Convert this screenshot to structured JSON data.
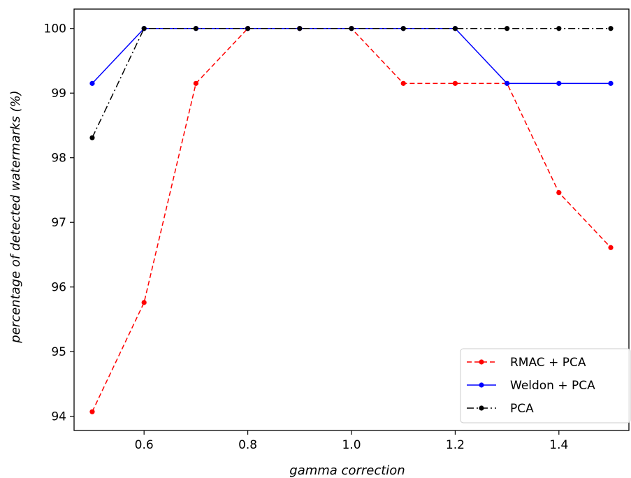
{
  "chart_data": {
    "type": "line",
    "xlabel": "gamma correction",
    "ylabel": "percentage of detected watermarks (%)",
    "xlim": [
      0.465,
      1.535
    ],
    "ylim": [
      93.78,
      100.3
    ],
    "x_ticks": [
      0.6,
      0.8,
      1.0,
      1.2,
      1.4
    ],
    "x_tick_labels": [
      "0.6",
      "0.8",
      "1.0",
      "1.2",
      "1.4"
    ],
    "y_ticks": [
      94,
      95,
      96,
      97,
      98,
      99,
      100
    ],
    "y_tick_labels": [
      "94",
      "95",
      "96",
      "97",
      "98",
      "99",
      "100"
    ],
    "grid": false,
    "legend_position": "lower-right",
    "x": [
      0.5,
      0.6,
      0.7,
      0.8,
      0.9,
      1.0,
      1.1,
      1.2,
      1.3,
      1.4,
      1.5
    ],
    "series": [
      {
        "name": "RMAC + PCA",
        "color": "#ff0000",
        "linestyle": "dashed",
        "values": [
          94.07,
          95.76,
          99.15,
          100,
          100,
          100,
          99.15,
          99.15,
          99.15,
          97.46,
          96.61
        ]
      },
      {
        "name": "Weldon + PCA",
        "color": "#0000ff",
        "linestyle": "solid",
        "values": [
          99.15,
          100,
          100,
          100,
          100,
          100,
          100,
          100,
          99.15,
          99.15,
          99.15
        ]
      },
      {
        "name": "PCA",
        "color": "#000000",
        "linestyle": "dashdot",
        "values": [
          98.31,
          100,
          100,
          100,
          100,
          100,
          100,
          100,
          100,
          100,
          100
        ]
      }
    ]
  }
}
